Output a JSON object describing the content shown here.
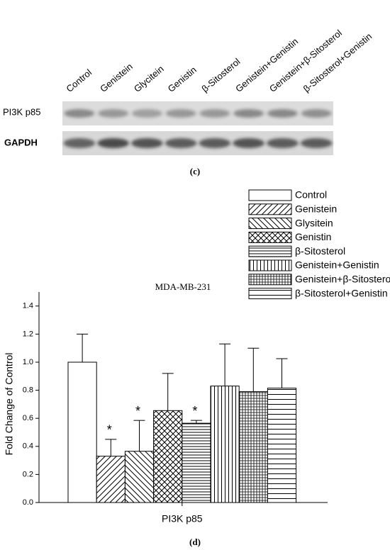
{
  "blot": {
    "lanes": [
      "Control",
      "Genistein",
      "Glycitein",
      "Genistin",
      "β-Sitosterol",
      "Genistein+Genistin",
      "Genistein+β-Sitosterol",
      "β-Sitosterol+Genistin"
    ],
    "rows": [
      "PI3K p85",
      "GAPDH"
    ],
    "caption": "(c)"
  },
  "chart_data": {
    "type": "bar",
    "title": "MDA-MB-231",
    "ylabel": "Fold Change of Control",
    "categories": [
      "PI3K p85"
    ],
    "series": [
      {
        "name": "Control",
        "color": "#000000",
        "hatch": "none",
        "values": [
          1.0
        ],
        "errors": [
          0.2
        ],
        "markers": [
          null
        ]
      },
      {
        "name": "Genistein",
        "color": "#000000",
        "hatch": "/",
        "values": [
          0.33
        ],
        "errors": [
          0.12
        ],
        "markers": [
          "*"
        ]
      },
      {
        "name": "Glysitein",
        "color": "#000000",
        "hatch": "\\",
        "values": [
          0.365
        ],
        "errors": [
          0.22
        ],
        "markers": [
          "*"
        ]
      },
      {
        "name": "Genistin",
        "color": "#000000",
        "hatch": "x",
        "values": [
          0.655
        ],
        "errors": [
          0.265
        ],
        "markers": [
          null
        ]
      },
      {
        "name": "β-Sitosterol",
        "color": "#000000",
        "hatch": "-",
        "values": [
          0.565
        ],
        "errors": [
          0.02
        ],
        "markers": [
          "*"
        ]
      },
      {
        "name": "Genistein+Genistin",
        "color": "#000000",
        "hatch": "|",
        "values": [
          0.83
        ],
        "errors": [
          0.3
        ],
        "markers": [
          null
        ]
      },
      {
        "name": "Genistein+β-Sitosterol",
        "color": "#000000",
        "hatch": "+",
        "values": [
          0.79
        ],
        "errors": [
          0.31
        ],
        "markers": [
          null
        ]
      },
      {
        "name": "β-Sitosterol+Genistin",
        "color": "#000000",
        "hatch": "=",
        "values": [
          0.815
        ],
        "errors": [
          0.21
        ],
        "markers": [
          null
        ]
      }
    ],
    "ylim": [
      0,
      1.5
    ],
    "yticks": [
      {
        "value": 0,
        "label": "0.0"
      },
      0.2,
      0.4,
      0.6,
      0.8,
      {
        "value": 1,
        "label": "1.0"
      },
      1.2,
      1.4
    ],
    "grid": false,
    "legend": "top-right",
    "caption": "(d)"
  }
}
